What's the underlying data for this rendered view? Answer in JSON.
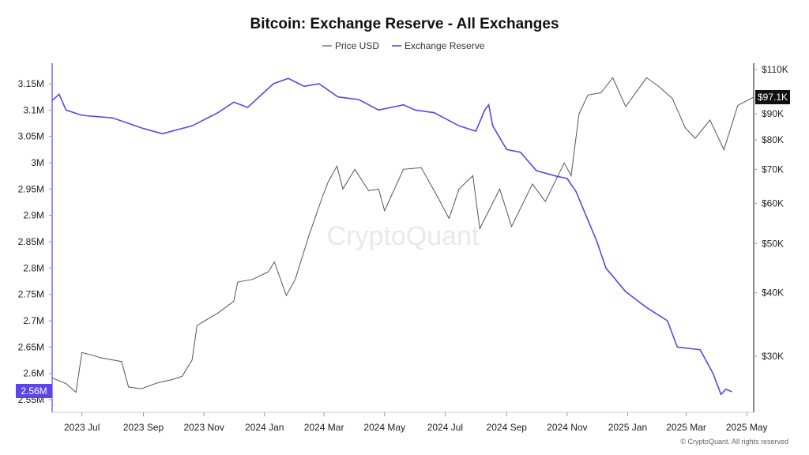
{
  "chart_data": {
    "type": "line",
    "title": "Bitcoin: Exchange Reserve - All Exchanges",
    "watermark": "CryptoQuant",
    "copyright": "© CryptoQuant. All rights reserved",
    "legend_placement": "top-center",
    "grid": false,
    "x_ticks": [
      "2023 Jul",
      "2023 Sep",
      "2023 Nov",
      "2024 Jan",
      "2024 Mar",
      "2024 May",
      "2024 Jul",
      "2024 Sep",
      "2024 Nov",
      "2025 Jan",
      "2025 Mar",
      "2025 May"
    ],
    "x_tick_dates": [
      "2023-07-01",
      "2023-09-01",
      "2023-11-01",
      "2024-01-01",
      "2024-03-01",
      "2024-05-01",
      "2024-07-01",
      "2024-09-01",
      "2024-11-01",
      "2025-01-01",
      "2025-03-01",
      "2025-05-01"
    ],
    "x_range": [
      "2023-06-01",
      "2025-05-08"
    ],
    "left_axis": {
      "ticks": [
        "2.55M",
        "2.6M",
        "2.65M",
        "2.7M",
        "2.75M",
        "2.8M",
        "2.85M",
        "2.9M",
        "2.95M",
        "3M",
        "3.05M",
        "3.1M",
        "3.15M"
      ],
      "tick_values": [
        2550000,
        2600000,
        2650000,
        2700000,
        2750000,
        2800000,
        2850000,
        2900000,
        2950000,
        3000000,
        3050000,
        3100000,
        3150000
      ],
      "range": [
        2550000,
        3150000
      ],
      "current_label": "2.56M",
      "accent": "#5b45e8"
    },
    "right_axis": {
      "scale": "log",
      "ticks": [
        "$30K",
        "$40K",
        "$50K",
        "$60K",
        "$70K",
        "$80K",
        "$90K",
        "$110K"
      ],
      "tick_values": [
        30000,
        40000,
        50000,
        60000,
        70000,
        80000,
        90000,
        110000
      ],
      "range": [
        25000,
        110000
      ],
      "current_label": "$97.1K",
      "accent": "#111111"
    },
    "series": [
      {
        "name": "Price USD",
        "axis": "right",
        "color": "#555555",
        "x": [
          "2023-06-01",
          "2023-06-15",
          "2023-06-25",
          "2023-07-01",
          "2023-07-10",
          "2023-07-20",
          "2023-08-10",
          "2023-08-17",
          "2023-08-30",
          "2023-09-15",
          "2023-09-30",
          "2023-10-10",
          "2023-10-20",
          "2023-10-25",
          "2023-11-15",
          "2023-12-01",
          "2023-12-05",
          "2023-12-20",
          "2024-01-05",
          "2024-01-11",
          "2024-01-23",
          "2024-02-01",
          "2024-02-15",
          "2024-02-28",
          "2024-03-05",
          "2024-03-14",
          "2024-03-20",
          "2024-04-01",
          "2024-04-15",
          "2024-04-25",
          "2024-05-01",
          "2024-05-20",
          "2024-06-07",
          "2024-06-25",
          "2024-07-05",
          "2024-07-15",
          "2024-07-29",
          "2024-08-05",
          "2024-08-25",
          "2024-09-06",
          "2024-09-27",
          "2024-10-10",
          "2024-10-29",
          "2024-11-05",
          "2024-11-13",
          "2024-11-22",
          "2024-12-05",
          "2024-12-17",
          "2024-12-30",
          "2025-01-20",
          "2025-02-01",
          "2025-02-15",
          "2025-02-28",
          "2025-03-10",
          "2025-03-25",
          "2025-04-08",
          "2025-04-22",
          "2025-05-08"
        ],
        "values": [
          27200,
          26500,
          25500,
          30500,
          30200,
          29800,
          29300,
          26100,
          25900,
          26600,
          27000,
          27400,
          29500,
          34500,
          36500,
          38500,
          42000,
          42500,
          44000,
          46000,
          39500,
          42500,
          52000,
          61500,
          66000,
          71000,
          64000,
          70000,
          63500,
          64000,
          58000,
          70000,
          70500,
          61000,
          56000,
          64000,
          68000,
          53500,
          64000,
          54000,
          65500,
          60500,
          72000,
          68000,
          90000,
          98000,
          99000,
          106000,
          93000,
          106000,
          102000,
          96500,
          84500,
          80500,
          87500,
          76500,
          93500,
          97100
        ]
      },
      {
        "name": "Exchange Reserve",
        "axis": "left",
        "color": "#5b45e8",
        "x": [
          "2023-06-01",
          "2023-06-08",
          "2023-06-15",
          "2023-07-01",
          "2023-08-01",
          "2023-09-01",
          "2023-09-20",
          "2023-10-20",
          "2023-11-15",
          "2023-12-01",
          "2023-12-15",
          "2024-01-10",
          "2024-01-25",
          "2024-02-10",
          "2024-02-25",
          "2024-03-15",
          "2024-04-05",
          "2024-04-25",
          "2024-05-20",
          "2024-06-01",
          "2024-06-20",
          "2024-07-15",
          "2024-08-01",
          "2024-08-10",
          "2024-08-14",
          "2024-08-18",
          "2024-09-01",
          "2024-09-15",
          "2024-10-01",
          "2024-10-20",
          "2024-11-01",
          "2024-11-10",
          "2024-11-20",
          "2024-12-01",
          "2024-12-10",
          "2024-12-30",
          "2025-01-20",
          "2025-02-10",
          "2025-02-20",
          "2025-03-15",
          "2025-03-28",
          "2025-04-05",
          "2025-04-10",
          "2025-04-16"
        ],
        "values": [
          3118000,
          3130000,
          3100000,
          3090000,
          3085000,
          3065000,
          3055000,
          3070000,
          3095000,
          3115000,
          3105000,
          3150000,
          3160000,
          3145000,
          3150000,
          3125000,
          3120000,
          3100000,
          3110000,
          3100000,
          3095000,
          3070000,
          3060000,
          3100000,
          3110000,
          3070000,
          3025000,
          3020000,
          2985000,
          2975000,
          2970000,
          2945000,
          2900000,
          2850000,
          2800000,
          2755000,
          2725000,
          2700000,
          2650000,
          2645000,
          2600000,
          2560000,
          2570000,
          2565000
        ]
      }
    ]
  }
}
